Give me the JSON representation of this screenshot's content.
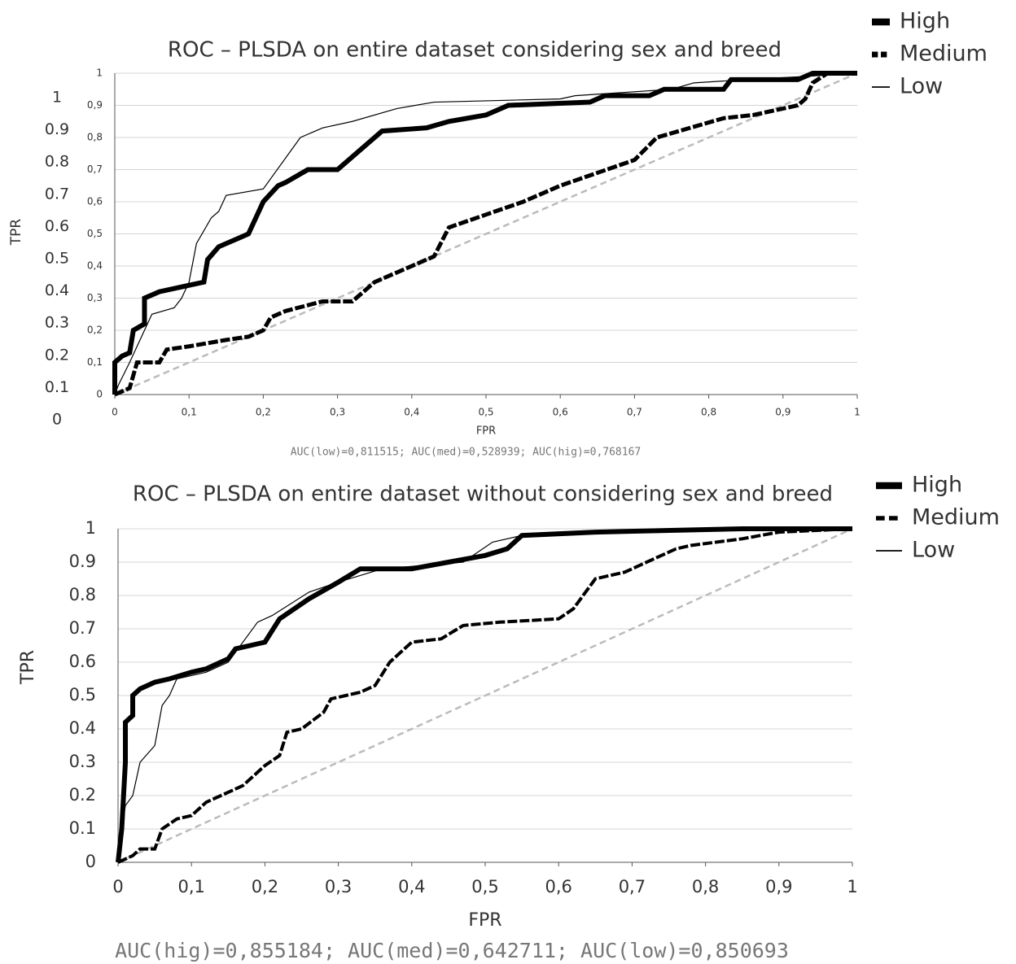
{
  "chart_data": [
    {
      "type": "line",
      "title": "ROC – PLSDA on entire dataset considering sex and breed",
      "x_label": "FPR",
      "y_label": "TPR",
      "annotation": "AUC(low)=0,811515; AUC(med)=0,528939; AUC(hig)=0,768167",
      "xlim": [
        0,
        1
      ],
      "ylim": [
        0,
        1
      ],
      "grid": true,
      "diagonal": true,
      "diagonal_color": "#bbbbbb",
      "legend": "top-right",
      "xticks": [
        0,
        {
          "value": 0.1,
          "label": "0,1"
        },
        {
          "value": 0.2,
          "label": "0,2"
        },
        {
          "value": 0.3,
          "label": "0,3"
        },
        {
          "value": 0.4,
          "label": "0,4"
        },
        {
          "value": 0.5,
          "label": "0,5"
        },
        {
          "value": 0.6,
          "label": "0,6"
        },
        {
          "value": 0.7,
          "label": "0,7"
        },
        {
          "value": 0.8,
          "label": "0,8"
        },
        {
          "value": 0.9,
          "label": "0,9"
        },
        1
      ],
      "yticks": [
        0,
        {
          "value": 0.1,
          "label": "0,1"
        },
        {
          "value": 0.2,
          "label": "0,2"
        },
        {
          "value": 0.3,
          "label": "0,3"
        },
        {
          "value": 0.4,
          "label": "0,4"
        },
        {
          "value": 0.5,
          "label": "0,5"
        },
        {
          "value": 0.6,
          "label": "0,6"
        },
        {
          "value": 0.7,
          "label": "0,7"
        },
        {
          "value": 0.8,
          "label": "0,8"
        },
        {
          "value": 0.9,
          "label": "0,9"
        },
        1
      ],
      "overlay_yticks": [
        1,
        0.9,
        0.8,
        0.7,
        0.6,
        0.5,
        0.4,
        0.3,
        0.2,
        0.1,
        0
      ],
      "series": [
        {
          "name": "High",
          "color": "#000000",
          "line_width": 6,
          "dash": false,
          "x": [
            0,
            0,
            0.01,
            0.02,
            0.025,
            0.04,
            0.04,
            0.06,
            0.1,
            0.12,
            0.125,
            0.14,
            0.17,
            0.18,
            0.19,
            0.2,
            0.22,
            0.23,
            0.26,
            0.3,
            0.34,
            0.36,
            0.42,
            0.45,
            0.5,
            0.53,
            0.64,
            0.66,
            0.72,
            0.74,
            0.82,
            0.83,
            0.92,
            0.94,
            1
          ],
          "values": [
            0,
            0.1,
            0.12,
            0.13,
            0.2,
            0.22,
            0.3,
            0.32,
            0.34,
            0.35,
            0.42,
            0.46,
            0.49,
            0.5,
            0.55,
            0.6,
            0.65,
            0.66,
            0.7,
            0.7,
            0.78,
            0.82,
            0.83,
            0.85,
            0.87,
            0.9,
            0.91,
            0.93,
            0.93,
            0.95,
            0.95,
            0.98,
            0.98,
            1,
            1
          ]
        },
        {
          "name": "Medium",
          "color": "#000000",
          "line_width": 5,
          "dash": true,
          "x": [
            0,
            0.02,
            0.03,
            0.06,
            0.07,
            0.1,
            0.15,
            0.18,
            0.2,
            0.21,
            0.23,
            0.28,
            0.32,
            0.35,
            0.37,
            0.4,
            0.43,
            0.45,
            0.5,
            0.55,
            0.6,
            0.65,
            0.7,
            0.73,
            0.76,
            0.82,
            0.86,
            0.92,
            0.93,
            0.94,
            0.96,
            1
          ],
          "values": [
            0,
            0.02,
            0.1,
            0.1,
            0.14,
            0.15,
            0.17,
            0.18,
            0.2,
            0.24,
            0.26,
            0.29,
            0.29,
            0.35,
            0.37,
            0.4,
            0.43,
            0.52,
            0.56,
            0.6,
            0.65,
            0.69,
            0.73,
            0.8,
            0.82,
            0.86,
            0.87,
            0.9,
            0.92,
            0.97,
            1,
            1
          ]
        },
        {
          "name": "Low",
          "color": "#000000",
          "line_width": 1.2,
          "dash": false,
          "x": [
            0,
            0.005,
            0.02,
            0.03,
            0.05,
            0.08,
            0.09,
            0.1,
            0.11,
            0.13,
            0.14,
            0.15,
            0.2,
            0.25,
            0.28,
            0.32,
            0.38,
            0.43,
            0.6,
            0.62,
            0.75,
            0.78,
            0.85,
            0.93,
            1
          ],
          "values": [
            0,
            0.03,
            0.1,
            0.15,
            0.25,
            0.27,
            0.3,
            0.35,
            0.47,
            0.55,
            0.57,
            0.62,
            0.64,
            0.8,
            0.83,
            0.85,
            0.89,
            0.91,
            0.92,
            0.93,
            0.95,
            0.97,
            0.98,
            0.99,
            1
          ]
        }
      ]
    },
    {
      "type": "line",
      "title": "ROC – PLSDA on entire dataset without considering sex and breed",
      "x_label": "FPR",
      "y_label": "TPR",
      "annotation": "AUC(hig)=0,855184; AUC(med)=0,642711; AUC(low)=0,850693",
      "xlim": [
        0,
        1
      ],
      "ylim": [
        0,
        1
      ],
      "grid": true,
      "diagonal": true,
      "diagonal_color": "#bbbbbb",
      "legend": "top-right",
      "xticks": [
        0,
        {
          "value": 0.1,
          "label": "0,1"
        },
        {
          "value": 0.2,
          "label": "0,2"
        },
        {
          "value": 0.3,
          "label": "0,3"
        },
        {
          "value": 0.4,
          "label": "0,4"
        },
        {
          "value": 0.5,
          "label": "0,5"
        },
        {
          "value": 0.6,
          "label": "0,6"
        },
        {
          "value": 0.7,
          "label": "0,7"
        },
        {
          "value": 0.8,
          "label": "0,8"
        },
        {
          "value": 0.9,
          "label": "0,9"
        },
        1
      ],
      "yticks": [
        0,
        0.1,
        0.2,
        0.3,
        0.4,
        0.5,
        0.6,
        0.7,
        0.8,
        0.9,
        1
      ],
      "series": [
        {
          "name": "High",
          "color": "#000000",
          "line_width": 6,
          "dash": false,
          "x": [
            0,
            0.005,
            0.01,
            0.01,
            0.02,
            0.02,
            0.03,
            0.05,
            0.07,
            0.1,
            0.12,
            0.15,
            0.16,
            0.18,
            0.2,
            0.22,
            0.26,
            0.3,
            0.33,
            0.4,
            0.45,
            0.5,
            0.53,
            0.55,
            0.65,
            0.85,
            1
          ],
          "values": [
            0,
            0.1,
            0.3,
            0.42,
            0.44,
            0.5,
            0.52,
            0.54,
            0.55,
            0.57,
            0.58,
            0.61,
            0.64,
            0.65,
            0.66,
            0.73,
            0.79,
            0.84,
            0.88,
            0.88,
            0.9,
            0.92,
            0.94,
            0.98,
            0.99,
            1,
            1
          ]
        },
        {
          "name": "Medium",
          "color": "#000000",
          "line_width": 4,
          "dash": true,
          "x": [
            0,
            0.01,
            0.02,
            0.03,
            0.05,
            0.06,
            0.08,
            0.1,
            0.12,
            0.15,
            0.17,
            0.2,
            0.22,
            0.23,
            0.25,
            0.28,
            0.29,
            0.33,
            0.35,
            0.37,
            0.38,
            0.4,
            0.44,
            0.47,
            0.52,
            0.6,
            0.62,
            0.65,
            0.69,
            0.73,
            0.76,
            0.78,
            0.85,
            0.9,
            1
          ],
          "values": [
            0,
            0.01,
            0.02,
            0.04,
            0.04,
            0.1,
            0.13,
            0.14,
            0.18,
            0.21,
            0.23,
            0.29,
            0.32,
            0.39,
            0.4,
            0.45,
            0.49,
            0.51,
            0.53,
            0.6,
            0.62,
            0.66,
            0.67,
            0.71,
            0.72,
            0.73,
            0.76,
            0.85,
            0.87,
            0.91,
            0.94,
            0.95,
            0.97,
            0.99,
            1
          ]
        },
        {
          "name": "Low",
          "color": "#000000",
          "line_width": 1.2,
          "dash": false,
          "x": [
            0,
            0.005,
            0.01,
            0.02,
            0.03,
            0.05,
            0.06,
            0.07,
            0.08,
            0.12,
            0.15,
            0.19,
            0.21,
            0.26,
            0.3,
            0.36,
            0.47,
            0.51,
            0.55,
            0.6,
            1
          ],
          "values": [
            0,
            0.1,
            0.17,
            0.2,
            0.3,
            0.35,
            0.47,
            0.5,
            0.55,
            0.57,
            0.6,
            0.72,
            0.74,
            0.81,
            0.84,
            0.88,
            0.9,
            0.96,
            0.98,
            0.99,
            1
          ]
        }
      ]
    }
  ]
}
